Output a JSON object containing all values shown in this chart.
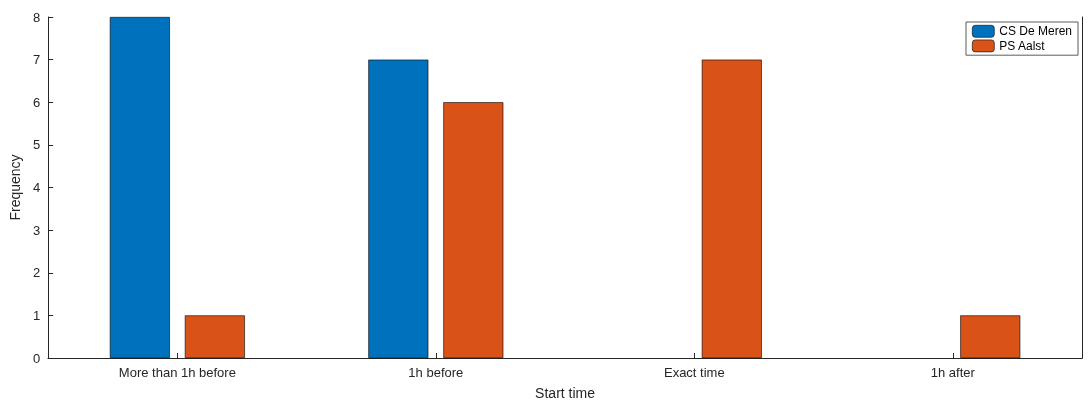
{
  "chart_data": {
    "type": "bar",
    "xlabel": "Start time",
    "ylabel": "Frequency",
    "categories": [
      "More than 1h before",
      "1h before",
      "Exact time",
      "1h after"
    ],
    "series": [
      {
        "name": "CS De Meren",
        "color": "#0072bd",
        "values": [
          8,
          7,
          0,
          0
        ]
      },
      {
        "name": "PS Aalst",
        "color": "#d95319",
        "values": [
          1,
          6,
          7,
          1
        ]
      }
    ],
    "ylim": [
      0,
      8
    ],
    "yticks": [
      0,
      1,
      2,
      3,
      4,
      5,
      6,
      7,
      8
    ],
    "legend": "top right"
  }
}
